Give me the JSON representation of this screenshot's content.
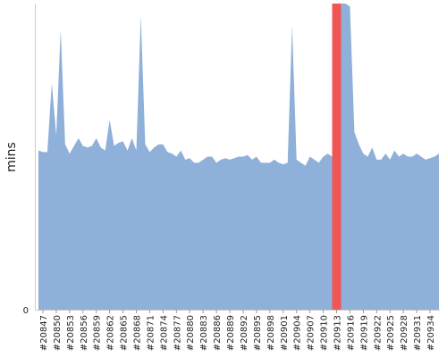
{
  "chart_data": {
    "type": "area",
    "ylabel": "mins",
    "y_ticks": [
      "0"
    ],
    "ylim": [
      0,
      1.0
    ],
    "x_tick_labels": [
      "#20847",
      "#20850",
      "#20853",
      "#20856",
      "#20859",
      "#20862",
      "#20865",
      "#20868",
      "#20871",
      "#20874",
      "#20877",
      "#20880",
      "#20883",
      "#20886",
      "#20889",
      "#20892",
      "#20895",
      "#20898",
      "#20901",
      "#20904",
      "#20907",
      "#20910",
      "#20913",
      "#20916",
      "#20919",
      "#20922",
      "#20925",
      "#20928",
      "#20931",
      "#20934"
    ],
    "x_start": 20846,
    "x_end": 20936,
    "series": [
      {
        "color": "#8fb0d8",
        "values": [
          0.52,
          0.515,
          0.515,
          0.74,
          0.57,
          0.915,
          0.54,
          0.51,
          0.535,
          0.56,
          0.535,
          0.53,
          0.535,
          0.56,
          0.53,
          0.52,
          0.62,
          0.535,
          0.545,
          0.55,
          0.52,
          0.56,
          0.52,
          0.96,
          0.54,
          0.515,
          0.53,
          0.54,
          0.54,
          0.515,
          0.51,
          0.5,
          0.52,
          0.49,
          0.495,
          0.48,
          0.48,
          0.49,
          0.5,
          0.5,
          0.48,
          0.49,
          0.495,
          0.49,
          0.495,
          0.5,
          0.5,
          0.505,
          0.49,
          0.5,
          0.48,
          0.48,
          0.48,
          0.49,
          0.48,
          0.475,
          0.48,
          0.93,
          0.49,
          0.48,
          0.47,
          0.5,
          0.49,
          0.48,
          0.5,
          0.51,
          0.5,
          0.72,
          1.0,
          1.0,
          0.99,
          0.58,
          0.54,
          0.51,
          0.5,
          0.53,
          0.49,
          0.49,
          0.51,
          0.49,
          0.52,
          0.5,
          0.51,
          0.5,
          0.5,
          0.51,
          0.5,
          0.49,
          0.495,
          0.5,
          0.51
        ]
      }
    ],
    "highlight": {
      "x": 20913,
      "color": "#f05656"
    }
  }
}
